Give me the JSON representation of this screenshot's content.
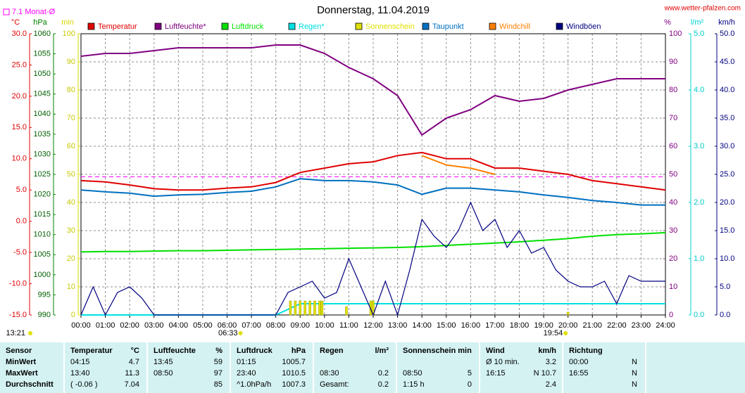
{
  "chart_data": {
    "type": "line",
    "title": "Donnerstag, 11.04.2019",
    "source": "www.wetter-pfalzen.com",
    "monthly_avg": {
      "label": "7.1 Monat-Ø",
      "value": 7.1,
      "color": "#ff00ff",
      "axis": "temp"
    },
    "daylength": "13:21",
    "sunrise": "06:33",
    "sunset": "19:54",
    "grid": true,
    "xlim": [
      0,
      24
    ],
    "xticks": [
      {
        "value": 0,
        "label": "00:00"
      },
      {
        "value": 1,
        "label": "01:00"
      },
      {
        "value": 2,
        "label": "02:00"
      },
      {
        "value": 3,
        "label": "03:00"
      },
      {
        "value": 4,
        "label": "04:00"
      },
      {
        "value": 5,
        "label": "05:00"
      },
      {
        "value": 6,
        "label": "06:00"
      },
      {
        "value": 7,
        "label": "07:00"
      },
      {
        "value": 8,
        "label": "08:00"
      },
      {
        "value": 9,
        "label": "09:00"
      },
      {
        "value": 10,
        "label": "10:00"
      },
      {
        "value": 11,
        "label": "11:00"
      },
      {
        "value": 12,
        "label": "12:00"
      },
      {
        "value": 13,
        "label": "13:00"
      },
      {
        "value": 14,
        "label": "14:00"
      },
      {
        "value": 15,
        "label": "15:00"
      },
      {
        "value": 16,
        "label": "16:00"
      },
      {
        "value": 17,
        "label": "17:00"
      },
      {
        "value": 18,
        "label": "18:00"
      },
      {
        "value": 19,
        "label": "19:00"
      },
      {
        "value": 20,
        "label": "20:00"
      },
      {
        "value": 21,
        "label": "21:00"
      },
      {
        "value": 22,
        "label": "22:00"
      },
      {
        "value": 23,
        "label": "23:00"
      },
      {
        "value": 24,
        "label": "24:00"
      }
    ],
    "axes": {
      "temp": {
        "unit": "°C",
        "color": "#e00000",
        "lim": [
          -15,
          30
        ],
        "ticks": [
          {
            "value": -15,
            "label": "-15.0"
          },
          {
            "value": -10,
            "label": "-10.0"
          },
          {
            "value": -5,
            "label": "-5.0"
          },
          {
            "value": 0,
            "label": "0.0"
          },
          {
            "value": 5,
            "label": "5.0"
          },
          {
            "value": 10,
            "label": "10.0"
          },
          {
            "value": 15,
            "label": "15.0"
          },
          {
            "value": 20,
            "label": "20.0"
          },
          {
            "value": 25,
            "label": "25.0"
          },
          {
            "value": 30,
            "label": "30.0"
          }
        ]
      },
      "press": {
        "unit": "hPa",
        "color": "#008000",
        "lim": [
          990,
          1060
        ],
        "ticks": [
          990,
          995,
          1000,
          1005,
          1010,
          1015,
          1020,
          1025,
          1030,
          1035,
          1040,
          1045,
          1050,
          1055,
          1060
        ]
      },
      "sun": {
        "unit": "min",
        "color": "#d8d800",
        "lim": [
          0,
          100
        ],
        "ticks": [
          0,
          10,
          20,
          30,
          40,
          50,
          60,
          70,
          80,
          90,
          100
        ]
      },
      "hum": {
        "unit": "%",
        "color": "#800080",
        "lim": [
          0,
          100
        ],
        "ticks": [
          0,
          10,
          20,
          30,
          40,
          50,
          60,
          70,
          80,
          90,
          100
        ]
      },
      "rain": {
        "unit": "l/m²",
        "color": "#00d0d0",
        "lim": [
          0,
          5
        ],
        "ticks": [
          {
            "value": 0,
            "label": "0.0"
          },
          {
            "value": 1,
            "label": "1.0"
          },
          {
            "value": 2,
            "label": "2.0"
          },
          {
            "value": 3,
            "label": "3.0"
          },
          {
            "value": 4,
            "label": "4.0"
          },
          {
            "value": 5,
            "label": "5.0"
          }
        ]
      },
      "wind": {
        "unit": "km/h",
        "color": "#000080",
        "lim": [
          0,
          50
        ],
        "ticks": [
          {
            "value": 0,
            "label": "0.0"
          },
          {
            "value": 5,
            "label": "5.0"
          },
          {
            "value": 10,
            "label": "10.0"
          },
          {
            "value": 15,
            "label": "15.0"
          },
          {
            "value": 20,
            "label": "20.0"
          },
          {
            "value": 25,
            "label": "25.0"
          },
          {
            "value": 30,
            "label": "30.0"
          },
          {
            "value": 35,
            "label": "35.0"
          },
          {
            "value": 40,
            "label": "40.0"
          },
          {
            "value": 45,
            "label": "45.0"
          },
          {
            "value": 50,
            "label": "50.0"
          }
        ]
      }
    },
    "x": [
      0,
      1,
      2,
      3,
      4,
      5,
      6,
      7,
      8,
      9,
      10,
      11,
      12,
      13,
      14,
      15,
      16,
      17,
      18,
      19,
      20,
      21,
      22,
      23,
      24
    ],
    "series": [
      {
        "name": "Temperatur",
        "color": "#e00000",
        "axis": "temp",
        "values": [
          6.5,
          6.3,
          5.8,
          5.2,
          5.0,
          5.0,
          5.3,
          5.5,
          6.2,
          7.8,
          8.5,
          9.2,
          9.5,
          10.5,
          11.0,
          10.0,
          10.0,
          8.5,
          8.5,
          8.0,
          7.5,
          6.5,
          6.0,
          5.5,
          5.0
        ]
      },
      {
        "name": "Luftfeuchte*",
        "color": "#800080",
        "axis": "hum",
        "values": [
          92,
          93,
          93,
          94,
          95,
          95,
          95,
          95,
          96,
          96,
          93,
          88,
          84,
          78,
          64,
          70,
          73,
          78,
          76,
          77,
          80,
          82,
          84,
          84,
          84
        ]
      },
      {
        "name": "Luftdruck",
        "color": "#00e000",
        "axis": "press",
        "values": [
          1005.7,
          1005.8,
          1005.8,
          1005.9,
          1006.0,
          1006.0,
          1006.1,
          1006.2,
          1006.3,
          1006.4,
          1006.5,
          1006.6,
          1006.7,
          1006.8,
          1007.0,
          1007.3,
          1007.6,
          1007.9,
          1008.2,
          1008.6,
          1009.0,
          1009.6,
          1010.0,
          1010.2,
          1010.5
        ]
      },
      {
        "name": "Regen*",
        "color": "#00e0e0",
        "axis": "rain",
        "values": [
          0,
          0,
          0,
          0,
          0,
          0,
          0,
          0,
          0,
          0.2,
          0.2,
          0.2,
          0.2,
          0.2,
          0.2,
          0.2,
          0.2,
          0.2,
          0.2,
          0.2,
          0.2,
          0.2,
          0.2,
          0.2,
          0.2
        ]
      },
      {
        "name": "Sonnenschein",
        "color": "#e0e000",
        "axis": "sun",
        "kind": "bars",
        "x": [
          8.6,
          8.8,
          9.0,
          9.2,
          9.4,
          9.6,
          9.8,
          9.9,
          10.9,
          11.9,
          12.0,
          20.0
        ],
        "values": [
          5,
          5,
          5,
          5,
          5,
          5,
          5,
          5,
          3,
          5,
          5,
          1
        ]
      },
      {
        "name": "Taupunkt",
        "color": "#0070c0",
        "axis": "temp",
        "values": [
          5.0,
          4.7,
          4.5,
          4.0,
          4.2,
          4.3,
          4.6,
          4.8,
          5.5,
          6.8,
          6.5,
          6.5,
          6.3,
          5.8,
          4.3,
          5.3,
          5.3,
          5.0,
          4.7,
          4.2,
          3.8,
          3.3,
          3.0,
          2.6,
          2.6
        ]
      },
      {
        "name": "Windchill",
        "color": "#ff8000",
        "axis": "temp",
        "values": [
          null,
          null,
          null,
          null,
          null,
          null,
          null,
          null,
          null,
          null,
          null,
          null,
          null,
          null,
          10.5,
          9.0,
          8.5,
          7.5,
          null,
          null,
          null,
          null,
          null,
          null,
          null
        ]
      },
      {
        "name": "Windböen",
        "color": "#000080",
        "axis": "wind",
        "x": [
          0,
          0.5,
          1,
          1.5,
          2,
          2.5,
          3,
          3.5,
          4,
          4.5,
          5,
          5.5,
          6,
          6.5,
          7,
          7.5,
          8,
          8.5,
          9,
          9.5,
          10,
          10.5,
          11,
          11.5,
          12,
          12.5,
          13,
          13.5,
          14,
          14.5,
          15,
          15.5,
          16,
          16.5,
          17,
          17.5,
          18,
          18.5,
          19,
          19.5,
          20,
          20.5,
          21,
          21.5,
          22,
          22.5,
          23,
          23.5,
          24
        ],
        "values": [
          0,
          5,
          0,
          4,
          5,
          3,
          0,
          0,
          0,
          0,
          0,
          0,
          0,
          0,
          0,
          0,
          0,
          4,
          5,
          6,
          3,
          4,
          10,
          5,
          0,
          6,
          0,
          8,
          17,
          14,
          12,
          15,
          20,
          15,
          17,
          12,
          15,
          11,
          12,
          8,
          6,
          5,
          5,
          6,
          2,
          7,
          6,
          6,
          6
        ]
      }
    ]
  },
  "table": {
    "header": [
      "Sensor",
      "Temperatur",
      "°C",
      "Luftfeuchte",
      "%",
      "Luftdruck",
      "hPa",
      "Regen",
      "l/m²",
      "Sonnenschein min",
      null,
      "Wind",
      "km/h",
      "Richtung",
      null
    ],
    "rows": [
      [
        "MinWert",
        "04:15",
        "4.7",
        "13:45",
        "59",
        "01:15",
        "1005.7",
        null,
        null,
        null,
        null,
        "Ø 10 min.",
        "3.2",
        "00:00",
        "N"
      ],
      [
        "MaxWert",
        "13:40",
        "11.3",
        "08:50",
        "97",
        "23:40",
        "1010.5",
        "08:30",
        "0.2",
        "08:50",
        "5",
        "16:15",
        "N 10.7",
        "16:55",
        "N"
      ],
      [
        "Durchschnitt",
        "( -0.06 )",
        "7.04",
        null,
        "85",
        "^1.0hPa/h",
        "1007.3",
        "Gesamt:",
        "0.2",
        "1:15 h",
        "0",
        null,
        "2.4",
        null,
        "N"
      ]
    ]
  }
}
